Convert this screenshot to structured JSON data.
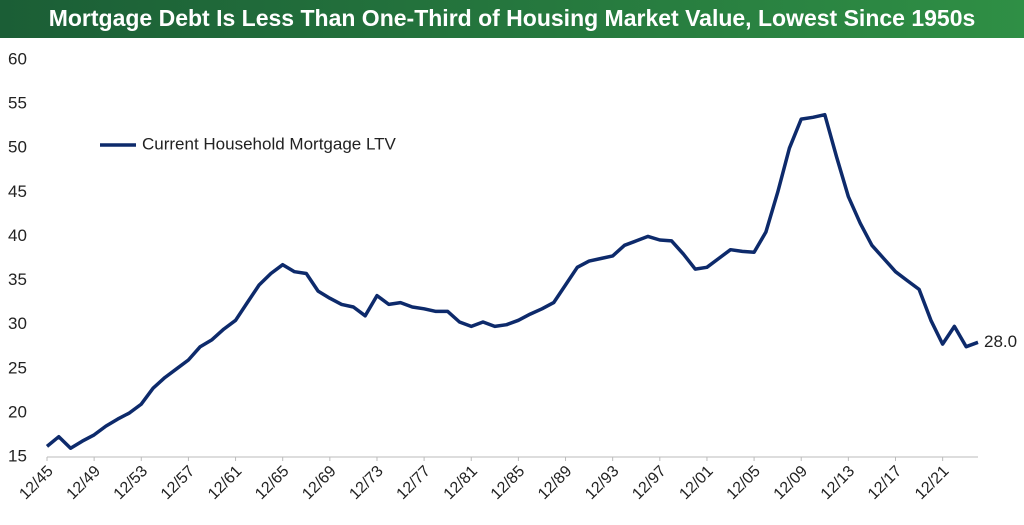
{
  "chart_data": {
    "type": "line",
    "title": "Mortgage Debt Is Less Than One-Third of Housing Market Value, Lowest Since 1950s",
    "categories": [
      "12/45",
      null,
      null,
      null,
      "12/49",
      null,
      null,
      null,
      "12/53",
      null,
      null,
      null,
      "12/57",
      null,
      null,
      null,
      "12/61",
      null,
      null,
      null,
      "12/65",
      null,
      null,
      null,
      "12/69",
      null,
      null,
      null,
      "12/73",
      null,
      null,
      null,
      "12/77",
      null,
      null,
      null,
      "12/81",
      null,
      null,
      null,
      "12/85",
      null,
      null,
      null,
      "12/89",
      null,
      null,
      null,
      "12/93",
      null,
      null,
      null,
      "12/97",
      null,
      null,
      null,
      "12/01",
      null,
      null,
      null,
      "12/05",
      null,
      null,
      null,
      "12/09",
      null,
      null,
      null,
      "12/13",
      null,
      null,
      null,
      "12/17",
      null,
      null,
      null,
      "12/21",
      null,
      null,
      null
    ],
    "series": [
      {
        "name": "Current Household Mortgage LTV",
        "color": "#0d2a6b",
        "values": [
          16.2,
          17.3,
          16.0,
          16.8,
          17.5,
          18.5,
          19.3,
          20.0,
          21.0,
          22.8,
          24.0,
          25.0,
          26.0,
          27.5,
          28.3,
          29.5,
          30.5,
          32.5,
          34.5,
          35.8,
          36.8,
          36.0,
          35.8,
          33.8,
          33.0,
          32.3,
          32.0,
          31.0,
          33.3,
          32.3,
          32.5,
          32.0,
          31.8,
          31.5,
          31.5,
          30.3,
          29.8,
          30.3,
          29.8,
          30.0,
          30.5,
          31.2,
          31.8,
          32.5,
          34.5,
          36.5,
          37.2,
          37.5,
          37.8,
          39.0,
          39.5,
          40.0,
          39.6,
          39.5,
          38.0,
          36.3,
          36.5,
          37.5,
          38.5,
          38.3,
          38.2,
          40.5,
          45.0,
          50.0,
          53.3,
          53.5,
          53.8,
          49.0,
          44.5,
          41.5,
          39.0,
          37.5,
          36.0,
          35.0,
          34.0,
          30.5,
          27.8,
          29.8,
          27.5,
          28.0
        ],
        "value_labels": [
          null,
          null,
          null,
          null,
          null,
          null,
          null,
          null,
          null,
          null,
          null,
          null,
          null,
          null,
          null,
          null,
          null,
          null,
          null,
          null,
          null,
          null,
          null,
          null,
          null,
          null,
          null,
          null,
          null,
          null,
          null,
          null,
          null,
          null,
          null,
          null,
          null,
          null,
          null,
          null,
          null,
          null,
          null,
          null,
          null,
          null,
          null,
          null,
          null,
          null,
          null,
          null,
          null,
          null,
          null,
          null,
          null,
          null,
          null,
          null,
          null,
          null,
          null,
          null,
          null,
          null,
          null,
          null,
          null,
          null,
          null,
          null,
          null,
          null,
          null,
          null,
          null,
          null,
          null,
          "28.0"
        ]
      }
    ],
    "ylim": [
      15,
      60
    ],
    "yticks": [
      15,
      20,
      25,
      30,
      35,
      40,
      45,
      50,
      55,
      60
    ],
    "grid": false,
    "legend": "upper-left"
  }
}
